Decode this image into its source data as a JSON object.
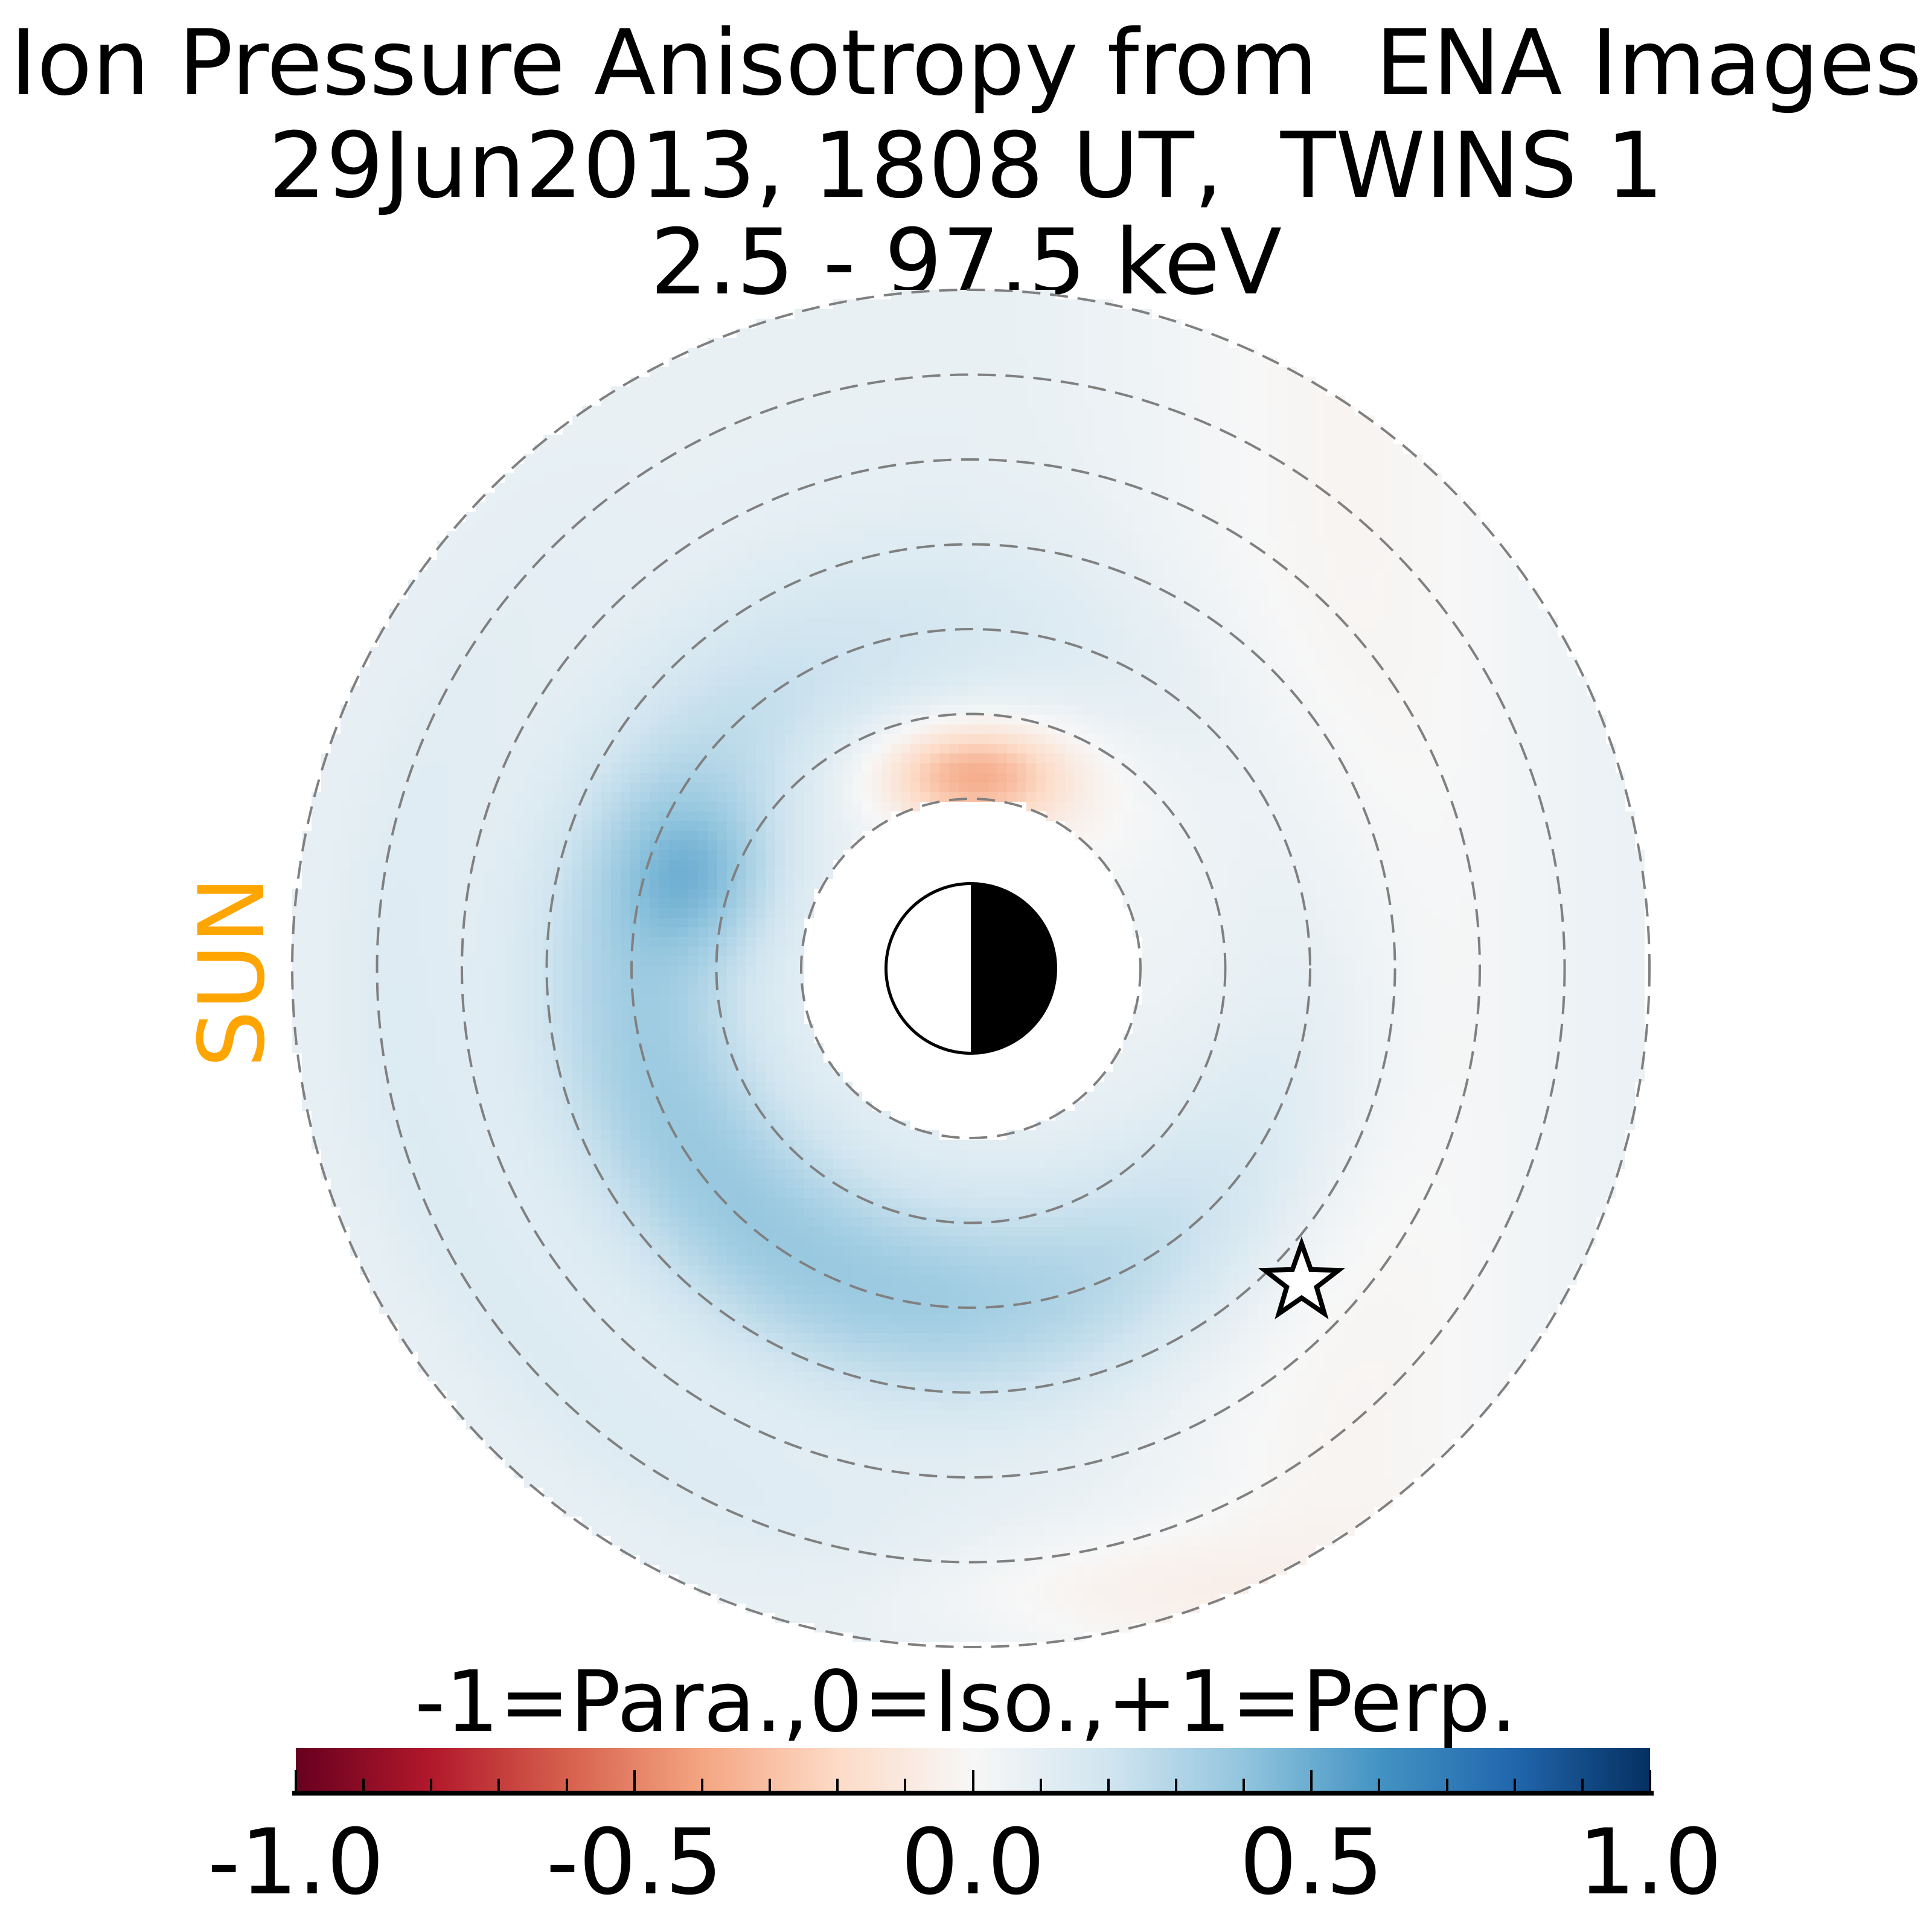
{
  "title": {
    "line1": "Ion Pressure Anisotropy from  ENA Images",
    "line2": "29Jun2013, 1808 UT,  TWINS 1",
    "line3": "2.5 - 97.5 keV"
  },
  "sun_label": "SUN",
  "colors": {
    "sun": "#ffa500",
    "rings": "#808080"
  },
  "chart_data": {
    "type": "heatmap",
    "title": "Ion Pressure Anisotropy from  ENA Images / 29Jun2013, 1808 UT,  TWINS 1 / 2.5 - 97.5 keV",
    "projection": "polar equatorial map, Sun to the left",
    "ring_radii_RE": [
      2,
      3,
      4,
      5,
      6,
      7,
      8
    ],
    "inner_boundary_RE": 2,
    "outer_boundary_RE": 8,
    "colormap": "RdBu",
    "clim": [
      -1.0,
      1.0
    ],
    "colorbar": {
      "label": "-1=Para.,0=Iso.,+1=Perp.",
      "ticks": [
        "-1.0",
        "-0.5",
        "0.0",
        "0.5",
        "1.0"
      ],
      "tick_values": [
        -1.0,
        -0.5,
        0.0,
        0.5,
        1.0
      ],
      "minor_step": 0.1
    },
    "features": [
      {
        "region": "dawn/post-midnight ring 3-5 RE",
        "value": 0.35
      },
      {
        "region": "pre-noon near 3.4 RE",
        "value": 0.45
      },
      {
        "region": "noon sector just outside 2 RE",
        "value": -0.25
      },
      {
        "region": "dusk side beyond 3 RE",
        "value": 0.03
      },
      {
        "region": "outer region",
        "value": 0.1
      }
    ],
    "markers": [
      {
        "name": "satellite-star",
        "x_RE": 3.9,
        "y_RE": -3.7
      }
    ]
  }
}
